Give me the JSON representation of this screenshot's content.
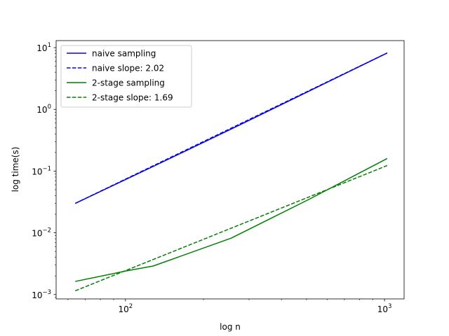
{
  "chart_data": {
    "type": "line",
    "xlabel": "log n",
    "ylabel": "log time(s)",
    "xscale": "log",
    "yscale": "log",
    "xlim": [
      54,
      1190
    ],
    "ylim": [
      0.00085,
      13
    ],
    "grid": false,
    "legend_position": "top-left",
    "x_major_ticks": [
      {
        "value": 100,
        "base": "10",
        "exp": "2"
      },
      {
        "value": 1000,
        "base": "10",
        "exp": "3"
      }
    ],
    "y_major_ticks": [
      {
        "value": 0.001,
        "base": "10",
        "exp": "−3"
      },
      {
        "value": 0.01,
        "base": "10",
        "exp": "−2"
      },
      {
        "value": 0.1,
        "base": "10",
        "exp": "−1"
      },
      {
        "value": 1,
        "base": "10",
        "exp": "0"
      },
      {
        "value": 10,
        "base": "10",
        "exp": "1"
      }
    ],
    "series": [
      {
        "name": "naive sampling",
        "color": "#0000ff",
        "dash": "solid",
        "x": [
          64,
          128,
          256,
          512,
          1024
        ],
        "y": [
          0.03,
          0.119,
          0.48,
          1.98,
          8.2
        ]
      },
      {
        "name": "naive slope: 2.02",
        "color": "#0000ff",
        "dash": "dashed",
        "x": [
          64,
          1024
        ],
        "y": [
          0.03,
          8.2
        ]
      },
      {
        "name": "2-stage sampling",
        "color": "#008000",
        "dash": "solid",
        "x": [
          64,
          100,
          128,
          256,
          512,
          1024
        ],
        "y": [
          0.00163,
          0.0024,
          0.0029,
          0.0082,
          0.035,
          0.16
        ]
      },
      {
        "name": "2-stage slope: 1.69",
        "color": "#008000",
        "dash": "dashed",
        "x": [
          64,
          1024
        ],
        "y": [
          0.00115,
          0.123
        ]
      }
    ]
  }
}
